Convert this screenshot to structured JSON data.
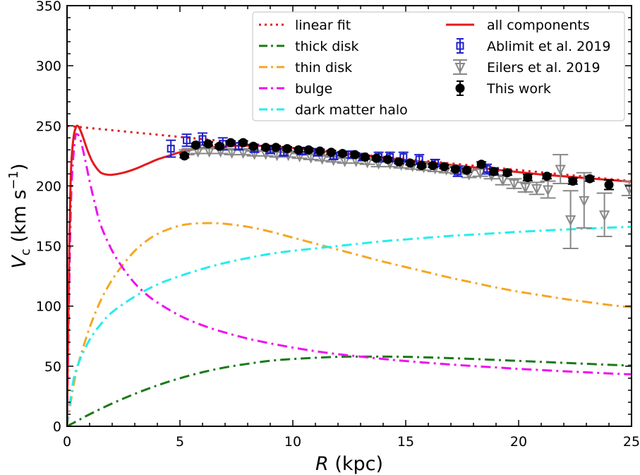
{
  "chart_data": {
    "type": "line",
    "title": "",
    "xlabel_italic": "R",
    "xlabel_rest": " (kpc)",
    "ylabel_main": "V",
    "ylabel_sub": "c",
    "ylabel_units_open": " (km s",
    "ylabel_units_sup": "−1",
    "ylabel_units_close": ")",
    "xlim": [
      0,
      25
    ],
    "ylim": [
      0,
      350
    ],
    "xticks": [
      0,
      5,
      10,
      15,
      20,
      25
    ],
    "yticks": [
      0,
      50,
      100,
      150,
      200,
      250,
      300,
      350
    ],
    "xticks_minor_step": 1,
    "yticks_minor_step": 10,
    "grid": false,
    "legend_position": "top-right",
    "series": [
      {
        "name": "linear fit",
        "style": "dotted",
        "color": "#e31a1c",
        "x": [
          0,
          25
        ],
        "y": [
          250,
          204
        ]
      },
      {
        "name": "thick disk",
        "style": "dashdot",
        "color": "#1a7a1a",
        "x": [
          0,
          0.5,
          1,
          2,
          3,
          4,
          5,
          6,
          7,
          8,
          9,
          10,
          11,
          12,
          13,
          14,
          15,
          16,
          17,
          18,
          19,
          20,
          21,
          22,
          23,
          24,
          25
        ],
        "y": [
          0,
          5,
          10,
          19,
          27,
          34,
          40,
          45,
          49,
          52,
          54.5,
          56,
          57,
          57.8,
          58,
          58,
          57.8,
          57.3,
          56.7,
          56,
          55.2,
          54.4,
          53.6,
          52.8,
          52,
          51.2,
          50.5
        ]
      },
      {
        "name": "thin disk",
        "style": "dashdot",
        "color": "#f5a623",
        "x": [
          0,
          0.25,
          0.5,
          1,
          1.5,
          2,
          2.5,
          3,
          3.5,
          4,
          4.5,
          5,
          5.5,
          6,
          6.5,
          7,
          8,
          9,
          10,
          11,
          12,
          13,
          14,
          15,
          16,
          17,
          18,
          19,
          20,
          21,
          22,
          23,
          24,
          25
        ],
        "y": [
          0,
          30,
          52,
          82,
          105,
          122,
          135,
          146,
          154,
          160,
          164,
          167,
          168.5,
          169,
          169,
          168.5,
          166,
          162,
          157,
          152,
          147,
          142,
          137,
          132.5,
          128,
          123.5,
          119.5,
          115.5,
          112,
          109,
          106,
          103.5,
          101,
          99
        ]
      },
      {
        "name": "bulge",
        "style": "dashdot",
        "color": "#ee11ee",
        "x": [
          0,
          0.1,
          0.2,
          0.35,
          0.45,
          0.6,
          0.8,
          1,
          1.25,
          1.5,
          2,
          2.5,
          3,
          3.5,
          4,
          5,
          6,
          7,
          8,
          9,
          10,
          11,
          12,
          13,
          14,
          15,
          16,
          17,
          18,
          19,
          20,
          21,
          22,
          23,
          24,
          25
        ],
        "y": [
          0,
          120,
          200,
          238,
          243,
          238,
          222,
          204,
          184,
          167,
          146,
          131,
          119,
          110,
          103,
          92,
          84,
          78,
          73,
          69,
          65.5,
          62.5,
          60,
          58,
          56,
          54.3,
          52.8,
          51.4,
          50.1,
          49,
          47.8,
          46.8,
          45.8,
          44.9,
          44,
          43.2
        ]
      },
      {
        "name": "dark matter halo",
        "style": "dashdot",
        "color": "#22eeee",
        "x": [
          0,
          0.25,
          0.5,
          1,
          1.5,
          2,
          3,
          4,
          5,
          6,
          7,
          8,
          9,
          10,
          11,
          12,
          13,
          14,
          15,
          16,
          17,
          18,
          19,
          20,
          21,
          22,
          23,
          24,
          25
        ],
        "y": [
          0,
          35,
          52,
          72,
          85,
          95,
          108,
          118,
          125,
          131,
          136,
          140,
          143.5,
          146,
          148,
          150,
          152,
          154,
          155.5,
          157,
          158.5,
          159.5,
          160.7,
          161.8,
          162.8,
          163.7,
          164.5,
          165.3,
          166
        ]
      },
      {
        "name": "all components",
        "style": "solid",
        "color": "#e31a1c",
        "x": [
          0,
          0.05,
          0.1,
          0.15,
          0.2,
          0.3,
          0.4,
          0.47,
          0.55,
          0.7,
          0.9,
          1.1,
          1.3,
          1.5,
          1.75,
          2,
          2.5,
          3,
          3.5,
          4,
          4.5,
          5,
          5.5,
          6,
          7,
          8,
          9,
          10,
          11,
          12,
          13,
          14,
          15,
          16,
          17,
          18,
          19,
          20,
          21,
          22,
          23,
          24,
          25
        ],
        "y": [
          0,
          80,
          150,
          195,
          222,
          242,
          249,
          250,
          248,
          241,
          230,
          221,
          215,
          211,
          209.5,
          209.3,
          211,
          214,
          218,
          222,
          225,
          228,
          230,
          231.5,
          233,
          233.5,
          233,
          231.5,
          229.5,
          227.5,
          225.5,
          223.5,
          221.5,
          219.5,
          217.5,
          215.5,
          213.5,
          211.5,
          209.5,
          208,
          206.5,
          205,
          203.5
        ]
      }
    ],
    "errorbar_series": [
      {
        "name": "Ablimit et al. 2019",
        "marker": "open-square",
        "color": "#1f1fcc",
        "points": [
          {
            "x": 4.6,
            "y": 231,
            "err": 7
          },
          {
            "x": 5.3,
            "y": 238,
            "err": 5
          },
          {
            "x": 6.0,
            "y": 239,
            "err": 5
          },
          {
            "x": 6.9,
            "y": 235,
            "err": 5
          },
          {
            "x": 7.6,
            "y": 233,
            "err": 3
          },
          {
            "x": 8.3,
            "y": 231,
            "err": 3
          },
          {
            "x": 9.0,
            "y": 230,
            "err": 3
          },
          {
            "x": 9.6,
            "y": 228,
            "err": 3
          },
          {
            "x": 10.4,
            "y": 229,
            "err": 3
          },
          {
            "x": 11.1,
            "y": 228,
            "err": 3
          },
          {
            "x": 11.8,
            "y": 225,
            "err": 3
          },
          {
            "x": 12.6,
            "y": 226,
            "err": 3
          },
          {
            "x": 13.1,
            "y": 224,
            "err": 3
          },
          {
            "x": 13.8,
            "y": 224,
            "err": 4
          },
          {
            "x": 14.3,
            "y": 224,
            "err": 4
          },
          {
            "x": 14.9,
            "y": 224,
            "err": 4
          },
          {
            "x": 15.6,
            "y": 222,
            "err": 4
          },
          {
            "x": 16.3,
            "y": 219,
            "err": 3
          },
          {
            "x": 17.3,
            "y": 212,
            "err": 4
          },
          {
            "x": 18.6,
            "y": 214,
            "err": 4
          },
          {
            "x": 18.9,
            "y": 212,
            "err": 3
          }
        ]
      },
      {
        "name": "Eilers et al. 2019",
        "marker": "open-triangle-down",
        "color": "#888888",
        "points": [
          {
            "x": 5.3,
            "y": 228,
            "err": 2
          },
          {
            "x": 5.8,
            "y": 229,
            "err": 2
          },
          {
            "x": 6.3,
            "y": 229,
            "err": 2
          },
          {
            "x": 6.8,
            "y": 229,
            "err": 2
          },
          {
            "x": 7.3,
            "y": 228,
            "err": 2
          },
          {
            "x": 7.8,
            "y": 228,
            "err": 2
          },
          {
            "x": 8.3,
            "y": 227,
            "err": 2
          },
          {
            "x": 8.8,
            "y": 227,
            "err": 2
          },
          {
            "x": 9.3,
            "y": 226,
            "err": 2
          },
          {
            "x": 9.8,
            "y": 226,
            "err": 2
          },
          {
            "x": 10.3,
            "y": 225,
            "err": 2
          },
          {
            "x": 10.8,
            "y": 224,
            "err": 2
          },
          {
            "x": 11.3,
            "y": 223,
            "err": 2
          },
          {
            "x": 11.8,
            "y": 222,
            "err": 2
          },
          {
            "x": 12.3,
            "y": 221,
            "err": 2
          },
          {
            "x": 12.8,
            "y": 221,
            "err": 2
          },
          {
            "x": 13.3,
            "y": 220,
            "err": 2
          },
          {
            "x": 13.8,
            "y": 219,
            "err": 3
          },
          {
            "x": 14.3,
            "y": 219,
            "err": 3
          },
          {
            "x": 14.8,
            "y": 218,
            "err": 3
          },
          {
            "x": 15.3,
            "y": 217,
            "err": 3
          },
          {
            "x": 15.8,
            "y": 216,
            "err": 3
          },
          {
            "x": 16.3,
            "y": 215,
            "err": 3
          },
          {
            "x": 16.8,
            "y": 214,
            "err": 3
          },
          {
            "x": 17.3,
            "y": 213,
            "err": 3
          },
          {
            "x": 17.8,
            "y": 210,
            "err": 3
          },
          {
            "x": 18.3,
            "y": 211,
            "err": 3
          },
          {
            "x": 18.8,
            "y": 209,
            "err": 3
          },
          {
            "x": 19.3,
            "y": 205,
            "err": 4
          },
          {
            "x": 19.8,
            "y": 202,
            "err": 4
          },
          {
            "x": 20.3,
            "y": 199,
            "err": 4
          },
          {
            "x": 20.8,
            "y": 198,
            "err": 5
          },
          {
            "x": 21.3,
            "y": 197,
            "err": 7
          },
          {
            "x": 21.85,
            "y": 214,
            "err": 12
          },
          {
            "x": 22.3,
            "y": 172,
            "err": 24
          },
          {
            "x": 22.9,
            "y": 188,
            "err": 23
          },
          {
            "x": 23.8,
            "y": 176,
            "err": 18
          },
          {
            "x": 24.9,
            "y": 198,
            "err": 6
          }
        ]
      },
      {
        "name": "This work",
        "marker": "filled-circle",
        "color": "#000000",
        "points": [
          {
            "x": 5.2,
            "y": 225,
            "err": 1.5
          },
          {
            "x": 5.7,
            "y": 234,
            "err": 1.5
          },
          {
            "x": 6.25,
            "y": 235,
            "err": 1.5
          },
          {
            "x": 6.75,
            "y": 233,
            "err": 1.5
          },
          {
            "x": 7.25,
            "y": 236,
            "err": 1.5
          },
          {
            "x": 7.8,
            "y": 236,
            "err": 1.5
          },
          {
            "x": 8.25,
            "y": 233,
            "err": 1.5
          },
          {
            "x": 8.8,
            "y": 232,
            "err": 1.5
          },
          {
            "x": 9.25,
            "y": 232,
            "err": 1.5
          },
          {
            "x": 9.75,
            "y": 231,
            "err": 1.5
          },
          {
            "x": 10.25,
            "y": 230,
            "err": 1.5
          },
          {
            "x": 10.7,
            "y": 230,
            "err": 1.5
          },
          {
            "x": 11.2,
            "y": 229,
            "err": 1.5
          },
          {
            "x": 11.7,
            "y": 228,
            "err": 1.5
          },
          {
            "x": 12.2,
            "y": 227,
            "err": 1.5
          },
          {
            "x": 12.75,
            "y": 226,
            "err": 1.5
          },
          {
            "x": 13.2,
            "y": 224,
            "err": 1.5
          },
          {
            "x": 13.7,
            "y": 223,
            "err": 1.5
          },
          {
            "x": 14.2,
            "y": 222,
            "err": 1.5
          },
          {
            "x": 14.7,
            "y": 220,
            "err": 1.5
          },
          {
            "x": 15.2,
            "y": 219,
            "err": 1.5
          },
          {
            "x": 15.7,
            "y": 217,
            "err": 1.5
          },
          {
            "x": 16.2,
            "y": 217,
            "err": 1.5
          },
          {
            "x": 16.7,
            "y": 216,
            "err": 1.5
          },
          {
            "x": 17.2,
            "y": 214,
            "err": 1.5
          },
          {
            "x": 17.7,
            "y": 213,
            "err": 1.5
          },
          {
            "x": 18.35,
            "y": 218,
            "err": 2
          },
          {
            "x": 18.9,
            "y": 212,
            "err": 2
          },
          {
            "x": 19.5,
            "y": 211,
            "err": 2
          },
          {
            "x": 20.4,
            "y": 207,
            "err": 2.5
          },
          {
            "x": 21.25,
            "y": 208,
            "err": 2
          },
          {
            "x": 22.4,
            "y": 204,
            "err": 2.5
          },
          {
            "x": 23.15,
            "y": 206,
            "err": 2
          },
          {
            "x": 24.0,
            "y": 201,
            "err": 4
          }
        ]
      }
    ],
    "legend": {
      "left_column": [
        "linear fit",
        "thick disk",
        "thin disk",
        "bulge",
        "dark matter halo"
      ],
      "right_column": [
        "all components",
        "Ablimit et al. 2019",
        "Eilers et al. 2019",
        "This work"
      ]
    }
  }
}
